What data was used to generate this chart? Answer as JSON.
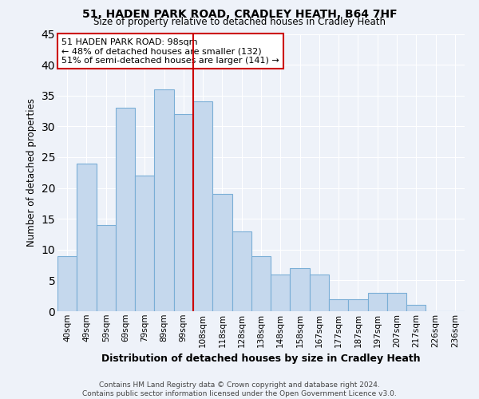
{
  "title": "51, HADEN PARK ROAD, CRADLEY HEATH, B64 7HF",
  "subtitle": "Size of property relative to detached houses in Cradley Heath",
  "xlabel": "Distribution of detached houses by size in Cradley Heath",
  "ylabel": "Number of detached properties",
  "bar_labels": [
    "40sqm",
    "49sqm",
    "59sqm",
    "69sqm",
    "79sqm",
    "89sqm",
    "99sqm",
    "108sqm",
    "118sqm",
    "128sqm",
    "138sqm",
    "148sqm",
    "158sqm",
    "167sqm",
    "177sqm",
    "187sqm",
    "197sqm",
    "207sqm",
    "217sqm",
    "226sqm",
    "236sqm"
  ],
  "bar_values": [
    9,
    24,
    14,
    33,
    22,
    36,
    32,
    34,
    19,
    13,
    9,
    6,
    7,
    6,
    2,
    2,
    3,
    3,
    1,
    0,
    0
  ],
  "bar_color": "#c5d8ed",
  "bar_edge_color": "#7aaed6",
  "background_color": "#eef2f9",
  "grid_color": "#ffffff",
  "property_line_x": 6,
  "property_line_label": "51 HADEN PARK ROAD: 98sqm",
  "annotation_line1": "← 48% of detached houses are smaller (132)",
  "annotation_line2": "51% of semi-detached houses are larger (141) →",
  "annotation_box_color": "#ffffff",
  "annotation_box_edge": "#cc0000",
  "vline_color": "#cc0000",
  "ylim": [
    0,
    45
  ],
  "footer1": "Contains HM Land Registry data © Crown copyright and database right 2024.",
  "footer2": "Contains public sector information licensed under the Open Government Licence v3.0."
}
